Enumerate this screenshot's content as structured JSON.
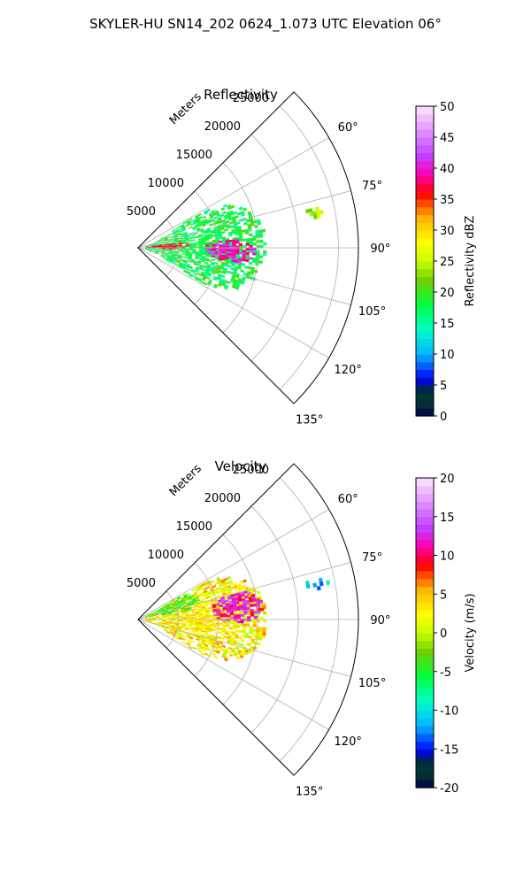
{
  "figure": {
    "suptitle": "SKYLER-HU  SN14_202  0624_1.073 UTC Elevation 06°"
  },
  "chart_data": [
    {
      "type": "heatmap",
      "subtype": "polar-sector-ppi",
      "title": "Reflectivity",
      "radial_label": "Meters",
      "radial_ticks": [
        "5000",
        "10000",
        "15000",
        "20000",
        "25000"
      ],
      "radial_tick_values": [
        5000,
        10000,
        15000,
        20000,
        25000
      ],
      "rlim": [
        0,
        27500
      ],
      "theta_ticks": [
        "60°",
        "75°",
        "90°",
        "105°",
        "120°",
        "135°"
      ],
      "theta_tick_values": [
        60,
        75,
        90,
        105,
        120,
        135
      ],
      "theta_range": [
        45,
        135
      ],
      "grid": true,
      "colorbar": {
        "label": "Reflectivity dBZ",
        "range": [
          0,
          50
        ],
        "ticks": [
          "0",
          "5",
          "10",
          "15",
          "20",
          "25",
          "30",
          "35",
          "40",
          "45",
          "50"
        ],
        "tick_values": [
          0,
          5,
          10,
          15,
          20,
          25,
          30,
          35,
          40,
          45,
          50
        ],
        "placement": "right"
      },
      "echoes": [
        {
          "theta_range": [
            60,
            118
          ],
          "r_range": [
            500,
            16000
          ],
          "value": 18
        },
        {
          "theta_range": [
            84,
            98
          ],
          "r_range": [
            8000,
            14500
          ],
          "value": 40
        },
        {
          "theta_range": [
            82,
            92
          ],
          "r_range": [
            500,
            6500
          ],
          "value": 36
        },
        {
          "theta_range": [
            76,
            80
          ],
          "r_range": [
            21000,
            24000
          ],
          "value": 24
        }
      ]
    },
    {
      "type": "heatmap",
      "subtype": "polar-sector-ppi",
      "title": "Velocity",
      "radial_label": "Meters",
      "radial_ticks": [
        "5000",
        "10000",
        "15000",
        "20000",
        "25000"
      ],
      "radial_tick_values": [
        5000,
        10000,
        15000,
        20000,
        25000
      ],
      "rlim": [
        0,
        27500
      ],
      "theta_ticks": [
        "60°",
        "75°",
        "90°",
        "105°",
        "120°",
        "135°"
      ],
      "theta_tick_values": [
        60,
        75,
        90,
        105,
        120,
        135
      ],
      "theta_range": [
        45,
        135
      ],
      "grid": true,
      "colorbar": {
        "label": "Velocity (m/s)",
        "range": [
          -20,
          20
        ],
        "ticks": [
          "-20",
          "-15",
          "-10",
          "-5",
          "0",
          "5",
          "10",
          "15",
          "20"
        ],
        "tick_values": [
          -20,
          -15,
          -10,
          -5,
          0,
          5,
          10,
          15,
          20
        ],
        "placement": "right"
      },
      "echoes": [
        {
          "theta_range": [
            60,
            118
          ],
          "r_range": [
            500,
            16000
          ],
          "value": 3
        },
        {
          "theta_range": [
            74,
            92
          ],
          "r_range": [
            9000,
            15500
          ],
          "value": 12
        },
        {
          "theta_range": [
            60,
            80
          ],
          "r_range": [
            500,
            8000
          ],
          "value": -3
        },
        {
          "theta_range": [
            76,
            80
          ],
          "r_range": [
            21000,
            24000
          ],
          "value": -11
        }
      ]
    }
  ]
}
